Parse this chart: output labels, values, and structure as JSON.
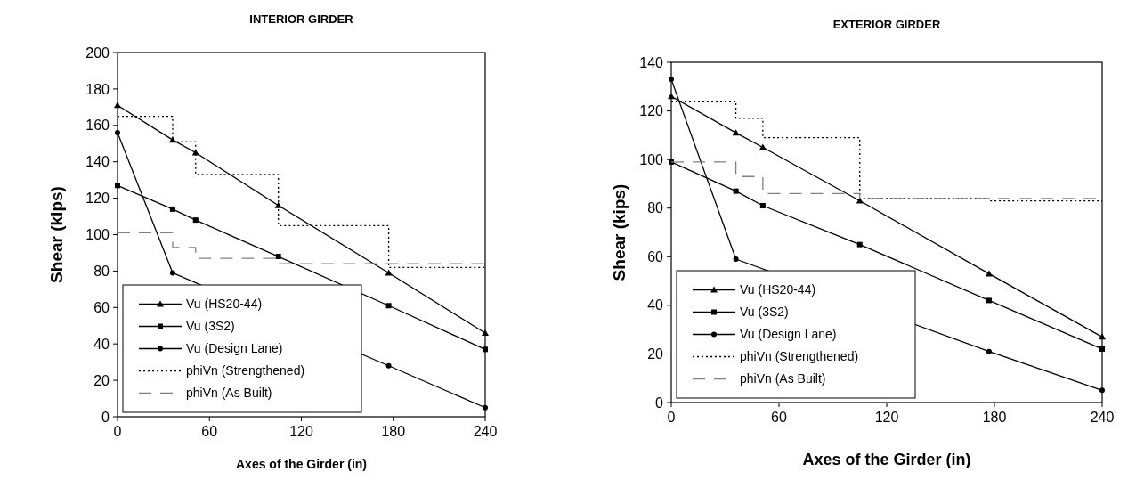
{
  "chart_data": [
    {
      "type": "line",
      "title": "INTERIOR GIRDER",
      "xlabel": "Axes of the Girder (in)",
      "ylabel": "Shear (kips)",
      "x": [
        0,
        36,
        51,
        105,
        177,
        240
      ],
      "xlim": [
        0,
        240
      ],
      "xticks": [
        0,
        60,
        120,
        180,
        240
      ],
      "ylim": [
        0,
        200
      ],
      "yticks": [
        0,
        20,
        40,
        60,
        80,
        100,
        120,
        140,
        160,
        180,
        200
      ],
      "grid": false,
      "legend": "bottom left",
      "series": [
        {
          "name": "Vu (HS20-44)",
          "color": "#000000",
          "values": [
            171,
            152,
            145,
            116,
            79,
            46
          ],
          "marker": "triangle",
          "line_style": "solid"
        },
        {
          "name": "Vu (3S2)",
          "color": "#000000",
          "values": [
            127,
            114,
            108,
            88,
            61,
            37
          ],
          "marker": "square",
          "line_style": "solid"
        },
        {
          "name": "Vu (Design Lane)",
          "color": "#000000",
          "values": [
            156,
            79,
            null,
            null,
            28,
            5
          ],
          "marker": "circle",
          "line_style": "solid"
        },
        {
          "name": "phiVn (Strengthened)",
          "type": "step",
          "color": "#000000",
          "values": [
            165,
            151,
            133,
            105,
            82,
            82
          ],
          "marker": "none",
          "line_style": "dotted"
        },
        {
          "name": "phiVn (As Built)",
          "type": "step",
          "color": "#808080",
          "values": [
            101,
            93,
            87,
            84,
            84,
            84
          ],
          "marker": "none",
          "line_style": "dashed"
        }
      ]
    },
    {
      "type": "line",
      "title": "EXTERIOR GIRDER",
      "xlabel": "Axes of the Girder (in)",
      "ylabel": "Shear (kips)",
      "x": [
        0,
        36,
        51,
        105,
        177,
        240
      ],
      "xlim": [
        0,
        240
      ],
      "xticks": [
        0,
        60,
        120,
        180,
        240
      ],
      "ylim": [
        0,
        140
      ],
      "yticks": [
        0,
        20,
        40,
        60,
        80,
        100,
        120,
        140
      ],
      "grid": false,
      "legend": "bottom left",
      "series": [
        {
          "name": "Vu (HS20-44)",
          "color": "#000000",
          "values": [
            126,
            111,
            105,
            83,
            53,
            27
          ],
          "marker": "triangle",
          "line_style": "solid"
        },
        {
          "name": "Vu (3S2)",
          "color": "#000000",
          "values": [
            99,
            87,
            81,
            65,
            42,
            22
          ],
          "marker": "square",
          "line_style": "solid"
        },
        {
          "name": "Vu (Design Lane)",
          "color": "#000000",
          "values": [
            133,
            59,
            null,
            null,
            21,
            5
          ],
          "marker": "circle",
          "line_style": "solid"
        },
        {
          "name": "phiVn (Strengthened)",
          "type": "step",
          "color": "#000000",
          "values": [
            124,
            117,
            109,
            84,
            83,
            83
          ],
          "marker": "none",
          "line_style": "dotted"
        },
        {
          "name": "phiVn (As Built)",
          "type": "step",
          "color": "#808080",
          "values": [
            99,
            93,
            86,
            84,
            84,
            84
          ],
          "marker": "none",
          "line_style": "dashed"
        }
      ]
    }
  ]
}
